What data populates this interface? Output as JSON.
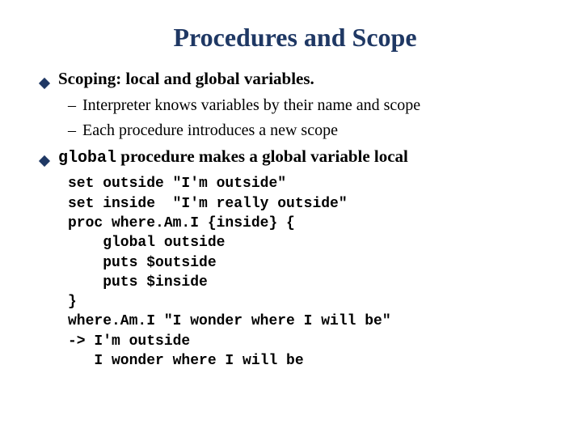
{
  "title": "Procedures and Scope",
  "colors": {
    "title_color": "#1f3864",
    "diamond_color": "#1f3864",
    "text_color": "#000000",
    "background": "#ffffff"
  },
  "typography": {
    "title_fontsize": 32,
    "bullet_fontsize": 21,
    "sub_fontsize": 20,
    "code_fontsize": 18,
    "title_font": "Times New Roman",
    "body_font": "Times New Roman",
    "code_font": "Courier New"
  },
  "bullets": [
    {
      "text": "Scoping: local and global variables.",
      "subs": [
        "Interpreter knows variables by their name and scope",
        "Each procedure introduces a new scope"
      ]
    },
    {
      "code_prefix": "global",
      "text": " procedure makes a global variable local"
    }
  ],
  "code": "set outside \"I'm outside\"\nset inside  \"I'm really outside\"\nproc where.Am.I {inside} {\n    global outside\n    puts $outside\n    puts $inside\n}\nwhere.Am.I \"I wonder where I will be\"\n-> I'm outside\n   I wonder where I will be"
}
